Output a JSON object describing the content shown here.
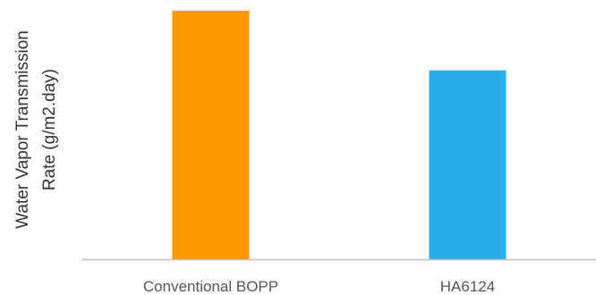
{
  "chart_data": {
    "type": "bar",
    "categories": [
      "Conventional BOPP",
      "HA6124"
    ],
    "values": [
      100,
      76
    ],
    "ylabel_lines": [
      "Water Vapor Transmission",
      "Rate (g/m2.day)"
    ],
    "ylim": [
      0,
      105
    ],
    "grid": false,
    "legend": "none",
    "bar_colors": [
      "#FF9900",
      "#29AEEA"
    ],
    "axis_color": "#BFBFBF"
  }
}
